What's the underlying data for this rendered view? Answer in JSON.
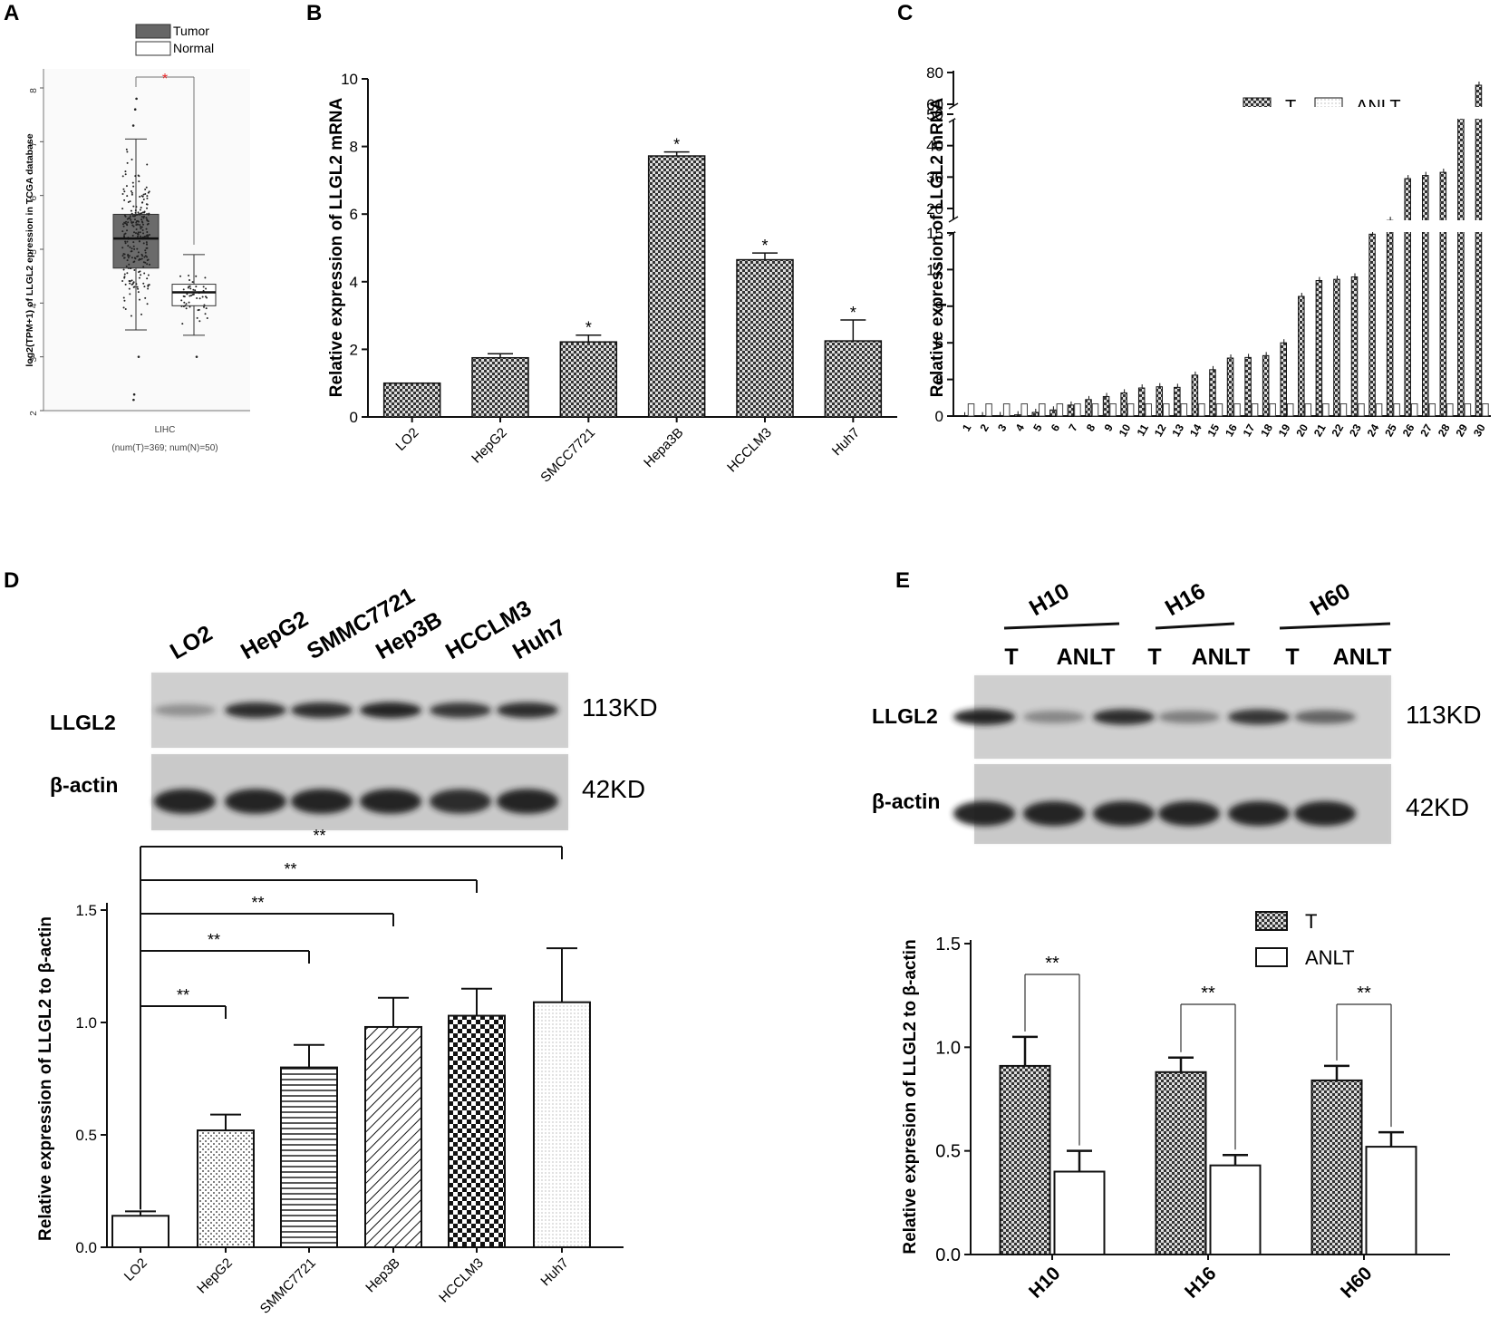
{
  "panels": {
    "A": "A",
    "B": "B",
    "C": "C",
    "D": "D",
    "E": "E"
  },
  "colors": {
    "bar_dark": "#333333",
    "bar_light": "#ffffff",
    "significance_red": "#e8282a",
    "axis": "#111111",
    "blot_bg": "#d9d9d9",
    "blot_band": "#1a1a1a"
  },
  "chart_data": [
    {
      "id": "A",
      "type": "box",
      "ylabel": "log2(TPM+1) of LLGL2 epression in TCGA database",
      "ylim": [
        2,
        8
      ],
      "yticks": [
        2,
        3,
        4,
        5,
        6,
        7,
        8
      ],
      "categories": [
        "LIHC"
      ],
      "xlabel_sub": "(num(T)=369; num(N)=50)",
      "legend": [
        "Tumor",
        "Normal"
      ],
      "significance": "*",
      "series": [
        {
          "name": "Tumor",
          "median": 5.2,
          "q1": 4.65,
          "q3": 5.65,
          "whisker_low": 3.5,
          "whisker_high": 7.05,
          "outliers": [
            7.8,
            7.6,
            7.3,
            3.0,
            2.3,
            2.2
          ]
        },
        {
          "name": "Normal",
          "median": 4.2,
          "q1": 3.95,
          "q3": 4.35,
          "whisker_low": 3.4,
          "whisker_high": 4.9,
          "outliers": [
            3.0
          ]
        }
      ]
    },
    {
      "id": "B",
      "type": "bar",
      "ylabel": "Relative expression of  LLGL2 mRNA",
      "ylim": [
        0,
        10
      ],
      "yticks": [
        0,
        2,
        4,
        6,
        8,
        10
      ],
      "categories": [
        "LO2",
        "HepG2",
        "SMCC7721",
        "Hepa3B",
        "HCCLM3",
        "Huh7"
      ],
      "values": [
        1.0,
        1.75,
        2.22,
        7.72,
        4.65,
        2.25
      ],
      "errors": [
        0,
        0.12,
        0.2,
        0.12,
        0.2,
        0.62
      ],
      "stars": [
        "",
        "",
        "*",
        "*",
        "*",
        "*"
      ]
    },
    {
      "id": "C",
      "type": "bar",
      "ylabel": "Relative expression of  LLGL2 mRNA",
      "broken_axis": true,
      "yticks_low": [
        0,
        3,
        6,
        9,
        12,
        15
      ],
      "yticks_mid": [
        20,
        30,
        40,
        50
      ],
      "yticks_high": [
        60,
        80
      ],
      "legend": [
        "T",
        "ANLT"
      ],
      "categories": [
        "1",
        "2",
        "3",
        "4",
        "5",
        "6",
        "7",
        "8",
        "9",
        "10",
        "11",
        "12",
        "13",
        "14",
        "15",
        "16",
        "17",
        "18",
        "19",
        "20",
        "21",
        "22",
        "23",
        "24",
        "25",
        "26",
        "27",
        "28",
        "29",
        "30"
      ],
      "series": [
        {
          "name": "T",
          "values": [
            0.02,
            0.03,
            0.04,
            0.1,
            0.3,
            0.5,
            0.9,
            1.35,
            1.6,
            1.9,
            2.3,
            2.4,
            2.35,
            3.35,
            3.8,
            4.75,
            4.8,
            4.95,
            6.0,
            9.8,
            11.1,
            11.2,
            11.4,
            14.9,
            16.2,
            29.5,
            30.5,
            31.5,
            55,
            72
          ]
        },
        {
          "name": "ANLT",
          "values": [
            1,
            1,
            1,
            1,
            1,
            1,
            1,
            1,
            1,
            1,
            1,
            1,
            1,
            1,
            1,
            1,
            1,
            1,
            1,
            1,
            1,
            1,
            1,
            1,
            1,
            1,
            1,
            1,
            1,
            1
          ]
        }
      ]
    },
    {
      "id": "D",
      "type": "bar",
      "ylabel": "Relative expression of LLGL2 to β-actin",
      "ylim": [
        0,
        1.5
      ],
      "yticks": [
        "0.0",
        "0.5",
        "1.0",
        "1.5"
      ],
      "categories": [
        "LO2",
        "HepG2",
        "SMMC7721",
        "Hep3B",
        "HCCLM3",
        "Huh7"
      ],
      "values": [
        0.14,
        0.52,
        0.8,
        0.98,
        1.03,
        1.09
      ],
      "errors": [
        0.02,
        0.07,
        0.1,
        0.13,
        0.12,
        0.24
      ],
      "significance": [
        "**",
        "**",
        "**",
        "**",
        "**"
      ]
    },
    {
      "id": "E",
      "type": "bar",
      "ylabel": "Relative expresion of LLGL2 to β-actin",
      "ylim": [
        0,
        1.5
      ],
      "yticks": [
        "0.0",
        "0.5",
        "1.0",
        "1.5"
      ],
      "categories": [
        "H10",
        "H16",
        "H60"
      ],
      "legend": [
        "T",
        "ANLT"
      ],
      "series": [
        {
          "name": "T",
          "values": [
            0.91,
            0.88,
            0.84
          ],
          "errors": [
            0.14,
            0.07,
            0.07
          ]
        },
        {
          "name": "ANLT",
          "values": [
            0.4,
            0.43,
            0.52
          ],
          "errors": [
            0.1,
            0.05,
            0.07
          ]
        }
      ],
      "significance": [
        "**",
        "**",
        "**"
      ]
    }
  ],
  "blots": {
    "D": {
      "lanes": [
        "LO2",
        "HepG2",
        "SMMC7721",
        "Hep3B",
        "HCCLM3",
        "Huh7"
      ],
      "rows": [
        {
          "label": "LLGL2",
          "kd": "113KD",
          "intensity": [
            0.35,
            0.9,
            0.9,
            0.95,
            0.85,
            0.9
          ]
        },
        {
          "label": "β-actin",
          "kd": "42KD",
          "intensity": [
            0.95,
            0.95,
            0.95,
            0.95,
            0.9,
            0.95
          ]
        }
      ]
    },
    "E": {
      "groups": [
        "H10",
        "H16",
        "H60"
      ],
      "lanes": [
        "T",
        "ANLT",
        "T",
        "ANLT",
        "T",
        "ANLT"
      ],
      "rows": [
        {
          "label": "LLGL2",
          "kd": "113KD",
          "intensity": [
            0.95,
            0.4,
            0.9,
            0.45,
            0.85,
            0.6
          ]
        },
        {
          "label": "β-actin",
          "kd": "42KD",
          "intensity": [
            0.95,
            0.95,
            0.95,
            0.95,
            0.95,
            0.95
          ]
        }
      ]
    }
  }
}
